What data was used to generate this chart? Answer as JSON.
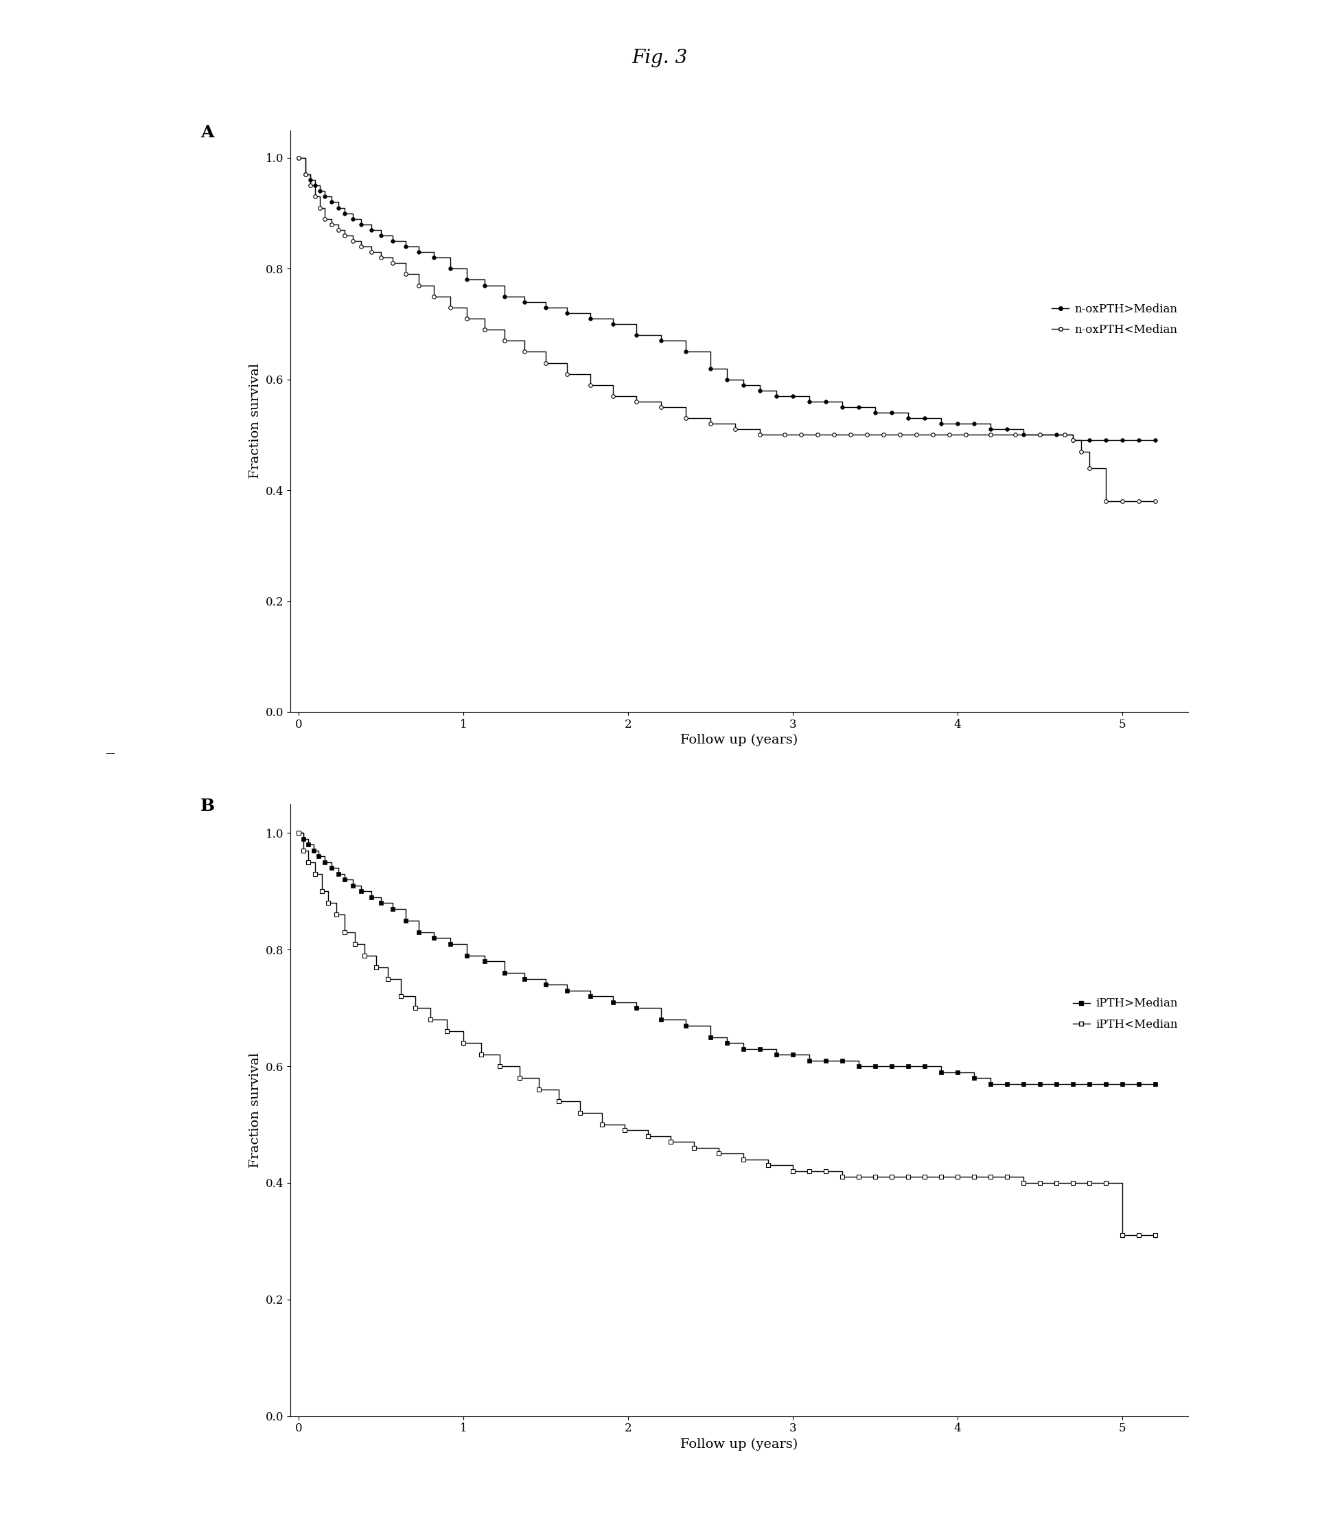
{
  "fig_title": "Fig. 3",
  "fig_title_fontsize": 20,
  "panel_A": {
    "label": "A",
    "xlabel": "Follow up (years)",
    "ylabel": "Fraction survival",
    "xlim": [
      -0.05,
      5.4
    ],
    "ylim": [
      0.0,
      1.05
    ],
    "xticks": [
      0,
      1,
      2,
      3,
      4,
      5
    ],
    "yticks": [
      0.0,
      0.2,
      0.4,
      0.6,
      0.8,
      1.0
    ],
    "high_label": "n-oxPTH>Median",
    "low_label": "n-oxPTH<Median",
    "high_x": [
      0.0,
      0.04,
      0.07,
      0.1,
      0.13,
      0.16,
      0.2,
      0.24,
      0.28,
      0.33,
      0.38,
      0.44,
      0.5,
      0.57,
      0.65,
      0.73,
      0.82,
      0.92,
      1.02,
      1.13,
      1.25,
      1.37,
      1.5,
      1.63,
      1.77,
      1.91,
      2.05,
      2.2,
      2.35,
      2.5,
      2.6,
      2.7,
      2.8,
      2.9,
      3.0,
      3.1,
      3.2,
      3.3,
      3.4,
      3.5,
      3.6,
      3.7,
      3.8,
      3.9,
      4.0,
      4.1,
      4.2,
      4.3,
      4.4,
      4.5,
      4.6,
      4.7,
      4.8,
      4.9,
      5.0,
      5.1,
      5.2
    ],
    "high_y": [
      1.0,
      0.97,
      0.96,
      0.95,
      0.94,
      0.93,
      0.92,
      0.91,
      0.9,
      0.89,
      0.88,
      0.87,
      0.86,
      0.85,
      0.84,
      0.83,
      0.82,
      0.8,
      0.78,
      0.77,
      0.75,
      0.74,
      0.73,
      0.72,
      0.71,
      0.7,
      0.68,
      0.67,
      0.65,
      0.62,
      0.6,
      0.59,
      0.58,
      0.57,
      0.57,
      0.56,
      0.56,
      0.55,
      0.55,
      0.54,
      0.54,
      0.53,
      0.53,
      0.52,
      0.52,
      0.52,
      0.51,
      0.51,
      0.5,
      0.5,
      0.5,
      0.49,
      0.49,
      0.49,
      0.49,
      0.49,
      0.49
    ],
    "low_x": [
      0.0,
      0.04,
      0.07,
      0.1,
      0.13,
      0.16,
      0.2,
      0.24,
      0.28,
      0.33,
      0.38,
      0.44,
      0.5,
      0.57,
      0.65,
      0.73,
      0.82,
      0.92,
      1.02,
      1.13,
      1.25,
      1.37,
      1.5,
      1.63,
      1.77,
      1.91,
      2.05,
      2.2,
      2.35,
      2.5,
      2.65,
      2.8,
      2.95,
      3.05,
      3.15,
      3.25,
      3.35,
      3.45,
      3.55,
      3.65,
      3.75,
      3.85,
      3.95,
      4.05,
      4.2,
      4.35,
      4.5,
      4.65,
      4.7,
      4.75,
      4.8,
      4.9,
      5.0,
      5.1,
      5.2
    ],
    "low_y": [
      1.0,
      0.97,
      0.95,
      0.93,
      0.91,
      0.89,
      0.88,
      0.87,
      0.86,
      0.85,
      0.84,
      0.83,
      0.82,
      0.81,
      0.79,
      0.77,
      0.75,
      0.73,
      0.71,
      0.69,
      0.67,
      0.65,
      0.63,
      0.61,
      0.59,
      0.57,
      0.56,
      0.55,
      0.53,
      0.52,
      0.51,
      0.5,
      0.5,
      0.5,
      0.5,
      0.5,
      0.5,
      0.5,
      0.5,
      0.5,
      0.5,
      0.5,
      0.5,
      0.5,
      0.5,
      0.5,
      0.5,
      0.5,
      0.49,
      0.47,
      0.44,
      0.38,
      0.38,
      0.38,
      0.38
    ]
  },
  "panel_B": {
    "label": "B",
    "xlabel": "Follow up (years)",
    "ylabel": "Fraction survival",
    "xlim": [
      -0.05,
      5.4
    ],
    "ylim": [
      0.0,
      1.05
    ],
    "xticks": [
      0,
      1,
      2,
      3,
      4,
      5
    ],
    "yticks": [
      0.0,
      0.2,
      0.4,
      0.6,
      0.8,
      1.0
    ],
    "high_label": "iPTH>Median",
    "low_label": "iPTH<Median",
    "high_x": [
      0.0,
      0.03,
      0.06,
      0.09,
      0.12,
      0.16,
      0.2,
      0.24,
      0.28,
      0.33,
      0.38,
      0.44,
      0.5,
      0.57,
      0.65,
      0.73,
      0.82,
      0.92,
      1.02,
      1.13,
      1.25,
      1.37,
      1.5,
      1.63,
      1.77,
      1.91,
      2.05,
      2.2,
      2.35,
      2.5,
      2.6,
      2.7,
      2.8,
      2.9,
      3.0,
      3.1,
      3.2,
      3.3,
      3.4,
      3.5,
      3.6,
      3.7,
      3.8,
      3.9,
      4.0,
      4.1,
      4.2,
      4.3,
      4.4,
      4.5,
      4.6,
      4.7,
      4.8,
      4.9,
      5.0,
      5.1,
      5.2
    ],
    "high_y": [
      1.0,
      0.99,
      0.98,
      0.97,
      0.96,
      0.95,
      0.94,
      0.93,
      0.92,
      0.91,
      0.9,
      0.89,
      0.88,
      0.87,
      0.85,
      0.83,
      0.82,
      0.81,
      0.79,
      0.78,
      0.76,
      0.75,
      0.74,
      0.73,
      0.72,
      0.71,
      0.7,
      0.68,
      0.67,
      0.65,
      0.64,
      0.63,
      0.63,
      0.62,
      0.62,
      0.61,
      0.61,
      0.61,
      0.6,
      0.6,
      0.6,
      0.6,
      0.6,
      0.59,
      0.59,
      0.58,
      0.57,
      0.57,
      0.57,
      0.57,
      0.57,
      0.57,
      0.57,
      0.57,
      0.57,
      0.57,
      0.57
    ],
    "low_x": [
      0.0,
      0.03,
      0.06,
      0.1,
      0.14,
      0.18,
      0.23,
      0.28,
      0.34,
      0.4,
      0.47,
      0.54,
      0.62,
      0.71,
      0.8,
      0.9,
      1.0,
      1.11,
      1.22,
      1.34,
      1.46,
      1.58,
      1.71,
      1.84,
      1.98,
      2.12,
      2.26,
      2.4,
      2.55,
      2.7,
      2.85,
      3.0,
      3.1,
      3.2,
      3.3,
      3.4,
      3.5,
      3.6,
      3.7,
      3.8,
      3.9,
      4.0,
      4.1,
      4.2,
      4.3,
      4.4,
      4.5,
      4.6,
      4.7,
      4.8,
      4.9,
      5.0,
      5.1,
      5.2
    ],
    "low_y": [
      1.0,
      0.97,
      0.95,
      0.93,
      0.9,
      0.88,
      0.86,
      0.83,
      0.81,
      0.79,
      0.77,
      0.75,
      0.72,
      0.7,
      0.68,
      0.66,
      0.64,
      0.62,
      0.6,
      0.58,
      0.56,
      0.54,
      0.52,
      0.5,
      0.49,
      0.48,
      0.47,
      0.46,
      0.45,
      0.44,
      0.43,
      0.42,
      0.42,
      0.42,
      0.41,
      0.41,
      0.41,
      0.41,
      0.41,
      0.41,
      0.41,
      0.41,
      0.41,
      0.41,
      0.41,
      0.4,
      0.4,
      0.4,
      0.4,
      0.4,
      0.4,
      0.31,
      0.31,
      0.31
    ]
  },
  "marker_size": 4,
  "line_width": 1.0,
  "font_size_axis_label": 14,
  "font_size_tick_label": 12,
  "font_size_legend": 12,
  "font_size_panel_label": 18,
  "background_color": "#ffffff",
  "line_color": "#000000"
}
